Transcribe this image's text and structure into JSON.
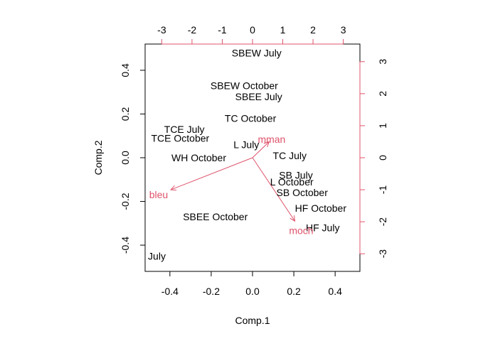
{
  "chart_data": {
    "type": "scatter",
    "subtype": "biplot",
    "xlabel": "Comp.1",
    "ylabel": "Comp.2",
    "xlim": [
      -0.52,
      0.52
    ],
    "ylim": [
      -0.52,
      0.52
    ],
    "x_ticks": [
      "-0.4",
      "-0.2",
      "0.0",
      "0.2",
      "0.4"
    ],
    "y_ticks": [
      "-0.4",
      "-0.2",
      "0.0",
      "0.2",
      "0.4"
    ],
    "secondary_x_ticks": [
      "-3",
      "-2",
      "-1",
      "0",
      "1",
      "2",
      "3"
    ],
    "secondary_y_ticks": [
      "-3",
      "-2",
      "-1",
      "0",
      "1",
      "2",
      "3"
    ],
    "secondary_lim": [
      -3.55,
      3.55
    ],
    "grid": false,
    "score_color": "#000000",
    "loading_color": "#DF536B",
    "points": [
      {
        "label": "SBEW July",
        "x": 0.02,
        "y": 0.48
      },
      {
        "label": "SBEW October",
        "x": -0.04,
        "y": 0.33
      },
      {
        "label": "SBEE July",
        "x": 0.03,
        "y": 0.28
      },
      {
        "label": "TC October",
        "x": -0.01,
        "y": 0.18
      },
      {
        "label": "TCE July",
        "x": -0.33,
        "y": 0.13
      },
      {
        "label": "TCE October",
        "x": -0.35,
        "y": 0.09
      },
      {
        "label": "L July",
        "x": -0.03,
        "y": 0.06
      },
      {
        "label": "TC July",
        "x": 0.18,
        "y": 0.01
      },
      {
        "label": "WH October",
        "x": -0.26,
        "y": 0.0
      },
      {
        "label": "SB July",
        "x": 0.21,
        "y": -0.08
      },
      {
        "label": "L October",
        "x": 0.19,
        "y": -0.11
      },
      {
        "label": "SB October",
        "x": 0.24,
        "y": -0.16
      },
      {
        "label": "HF October",
        "x": 0.33,
        "y": -0.23
      },
      {
        "label": "SBEE October",
        "x": -0.18,
        "y": -0.27
      },
      {
        "label": "HF July",
        "x": 0.34,
        "y": -0.32
      },
      {
        "label": "WH July",
        "x": -0.51,
        "y": -0.45
      }
    ],
    "loadings": [
      {
        "label": "mman",
        "x": 0.55,
        "y": 0.5
      },
      {
        "label": "bleu",
        "x": -2.7,
        "y": -1.0
      },
      {
        "label": "moch",
        "x": 1.4,
        "y": -1.98
      }
    ]
  }
}
